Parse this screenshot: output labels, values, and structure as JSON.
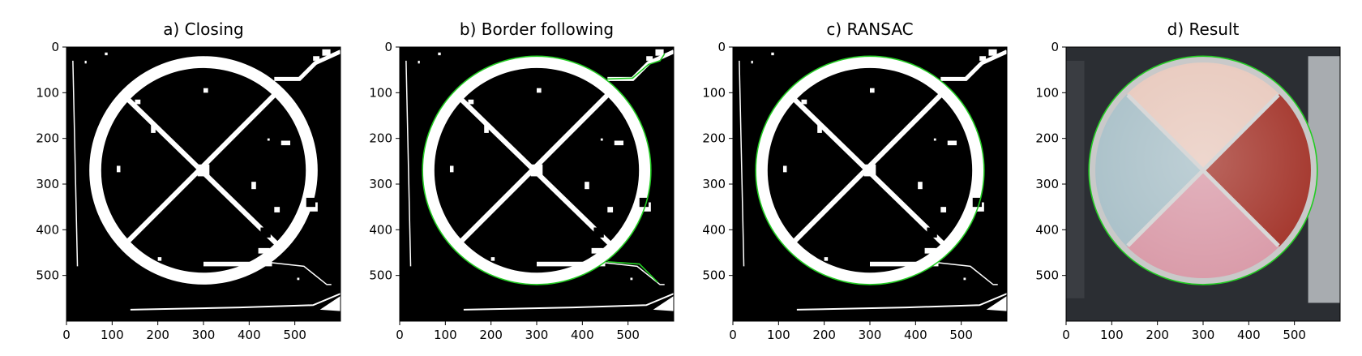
{
  "panels": [
    {
      "title": "a) Closing",
      "kind": "mask",
      "green_overlay": "none",
      "x_ticks": [
        0,
        100,
        200,
        300,
        400,
        500
      ],
      "y_ticks": [
        0,
        100,
        200,
        300,
        400,
        500
      ]
    },
    {
      "title": "b) Border following",
      "kind": "mask",
      "green_overlay": "contour",
      "x_ticks": [
        0,
        100,
        200,
        300,
        400,
        500
      ],
      "y_ticks": [
        0,
        100,
        200,
        300,
        400,
        500
      ]
    },
    {
      "title": "c) RANSAC",
      "kind": "mask",
      "green_overlay": "circle",
      "x_ticks": [
        0,
        100,
        200,
        300,
        400,
        500
      ],
      "y_ticks": [
        0,
        100,
        200,
        300,
        400,
        500
      ]
    },
    {
      "title": "d) Result",
      "kind": "photo",
      "green_overlay": "circle",
      "x_ticks": [
        0,
        100,
        200,
        300,
        400,
        500
      ],
      "y_ticks": [
        0,
        100,
        200,
        300,
        400,
        500
      ]
    }
  ],
  "image_extent": {
    "width": 600,
    "height": 600
  },
  "circle_fit": {
    "cx": 300,
    "cy": 270,
    "r": 250
  },
  "colors": {
    "mask_background": "#000000",
    "mask_foreground": "#ffffff",
    "overlay": "#22cc22",
    "photo_background": "#2b2e33",
    "plate_rim": "#c9c9c9",
    "quadrant_top": "#e8c9bd",
    "quadrant_right": "#a3342a",
    "quadrant_bottom": "#d99aa8",
    "quadrant_left": "#a9c0c8"
  }
}
